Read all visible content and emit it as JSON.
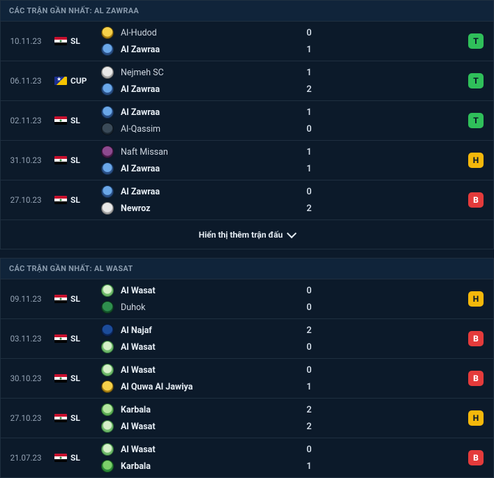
{
  "colors": {
    "background": "#0c1a2a",
    "border": "#1f2f40",
    "text_muted": "#93a2b3",
    "text": "#cdd5df",
    "text_strong": "#e6edf4",
    "chip_win": "#2fbf5a",
    "chip_draw": "#f5b80b",
    "chip_loss": "#e43b3b"
  },
  "show_more_label": "Hiển thị thêm trận đấu",
  "sections": [
    {
      "title": "CÁC TRẬN GẦN NHẤT: AL ZAWRAA",
      "matches": [
        {
          "date": "10.11.23",
          "flag": "iraq",
          "comp": "SL",
          "team1": {
            "name": "Al-Hudod",
            "bold": false,
            "badge": "b-yellow"
          },
          "team2": {
            "name": "Al Zawraa",
            "bold": true,
            "badge": "b-blue"
          },
          "score1": "0",
          "score2": "1",
          "result": "T"
        },
        {
          "date": "06.11.23",
          "flag": "afc",
          "comp": "CUP",
          "team1": {
            "name": "Nejmeh SC",
            "bold": false,
            "badge": "b-white"
          },
          "team2": {
            "name": "Al Zawraa",
            "bold": true,
            "badge": "b-blue"
          },
          "score1": "1",
          "score2": "2",
          "result": "T"
        },
        {
          "date": "02.11.23",
          "flag": "iraq",
          "comp": "SL",
          "team1": {
            "name": "Al Zawraa",
            "bold": true,
            "badge": "b-blue"
          },
          "team2": {
            "name": "Al-Qassim",
            "bold": false,
            "badge": "b-dark"
          },
          "score1": "1",
          "score2": "0",
          "result": "T"
        },
        {
          "date": "31.10.23",
          "flag": "iraq",
          "comp": "SL",
          "team1": {
            "name": "Naft Missan",
            "bold": false,
            "badge": "b-purple"
          },
          "team2": {
            "name": "Al Zawraa",
            "bold": true,
            "badge": "b-blue"
          },
          "score1": "1",
          "score2": "1",
          "result": "H"
        },
        {
          "date": "27.10.23",
          "flag": "iraq",
          "comp": "SL",
          "team1": {
            "name": "Al Zawraa",
            "bold": true,
            "badge": "b-blue"
          },
          "team2": {
            "name": "Newroz",
            "bold": true,
            "badge": "b-white"
          },
          "score1": "0",
          "score2": "2",
          "result": "B"
        }
      ]
    },
    {
      "title": "CÁC TRẬN GẦN NHẤT: AL WASAT",
      "matches": [
        {
          "date": "09.11.23",
          "flag": "iraq",
          "comp": "SL",
          "team1": {
            "name": "Al Wasat",
            "bold": true,
            "badge": "b-greenC"
          },
          "team2": {
            "name": "Duhok",
            "bold": false,
            "badge": "b-green"
          },
          "score1": "0",
          "score2": "0",
          "result": "H"
        },
        {
          "date": "03.11.23",
          "flag": "iraq",
          "comp": "SL",
          "team1": {
            "name": "Al Najaf",
            "bold": true,
            "badge": "b-navy"
          },
          "team2": {
            "name": "Al Wasat",
            "bold": true,
            "badge": "b-greenC"
          },
          "score1": "2",
          "score2": "0",
          "result": "B"
        },
        {
          "date": "30.10.23",
          "flag": "iraq",
          "comp": "SL",
          "team1": {
            "name": "Al Wasat",
            "bold": true,
            "badge": "b-greenC"
          },
          "team2": {
            "name": "Al Quwa Al Jawiya",
            "bold": true,
            "badge": "b-yellow"
          },
          "score1": "0",
          "score2": "1",
          "result": "B"
        },
        {
          "date": "27.10.23",
          "flag": "iraq",
          "comp": "SL",
          "team1": {
            "name": "Karbala",
            "bold": true,
            "badge": "b-greenL"
          },
          "team2": {
            "name": "Al Wasat",
            "bold": true,
            "badge": "b-greenC"
          },
          "score1": "2",
          "score2": "2",
          "result": "H"
        },
        {
          "date": "21.07.23",
          "flag": "iraq",
          "comp": "SL",
          "team1": {
            "name": "Al Wasat",
            "bold": true,
            "badge": "b-greenC"
          },
          "team2": {
            "name": "Karbala",
            "bold": true,
            "badge": "b-greenG"
          },
          "score1": "0",
          "score2": "1",
          "result": "B"
        }
      ]
    }
  ]
}
